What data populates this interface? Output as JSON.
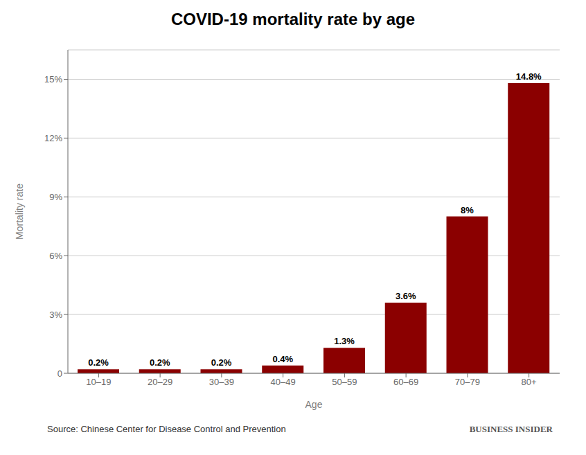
{
  "chart_data": {
    "type": "bar",
    "title": "COVID-19 mortality rate by age",
    "xlabel": "Age",
    "ylabel": "Mortality rate",
    "categories": [
      "10–19",
      "20–29",
      "30–39",
      "40–49",
      "50–59",
      "60–69",
      "70–79",
      "80+"
    ],
    "values": [
      0.2,
      0.2,
      0.2,
      0.4,
      1.3,
      3.6,
      8.0,
      14.8
    ],
    "value_labels": [
      "0.2%",
      "0.2%",
      "0.2%",
      "0.4%",
      "1.3%",
      "3.6%",
      "8%",
      "14.8%"
    ],
    "data_labels": true,
    "color": "#8B0000",
    "ylim": [
      0,
      16.5
    ],
    "yticks": [
      0,
      {
        "value": 3,
        "label": "3%"
      },
      {
        "value": 6,
        "label": "6%"
      },
      {
        "value": 9,
        "label": "9%"
      },
      {
        "value": 12,
        "label": "12%"
      },
      {
        "value": 15,
        "label": "15%"
      }
    ],
    "grid": true,
    "annotations": [
      "Source: Chinese Center for Disease Control and Prevention",
      "BUSINESS INSIDER"
    ]
  }
}
